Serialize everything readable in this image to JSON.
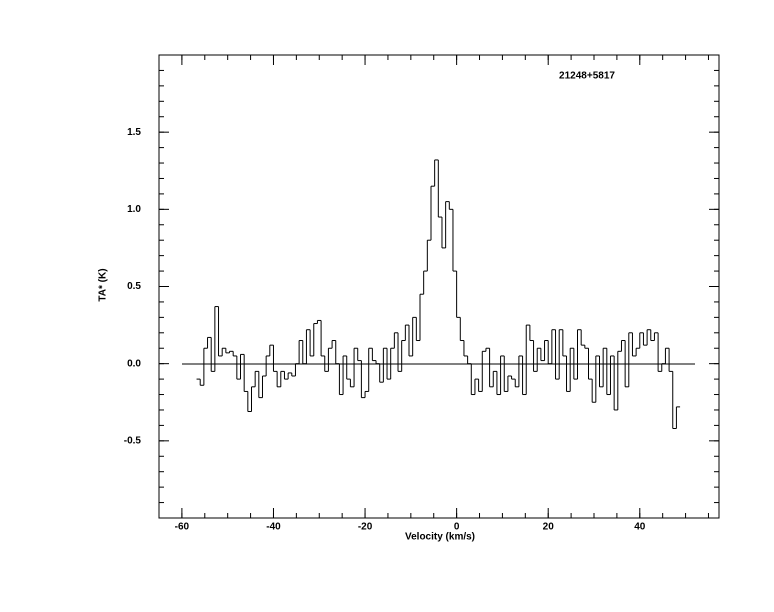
{
  "chart_data": {
    "type": "step",
    "title": "21248+5817",
    "x_label": "Velocity (km/s)",
    "y_label": "TA* (K)",
    "color": "#000000",
    "xlim": [
      -65,
      57.3
    ],
    "ylim": [
      -1,
      2
    ],
    "xticks": [
      -60,
      -40,
      -20,
      0,
      20,
      40
    ],
    "yticks": [
      {
        "value": -0.5,
        "label": "-0.5"
      },
      {
        "value": 0,
        "label": "0.0"
      },
      {
        "value": 0.5,
        "label": "0.5"
      },
      {
        "value": 1,
        "label": "1.0"
      },
      {
        "value": 1.5,
        "label": "1.5"
      }
    ],
    "x": [
      -56.4,
      -55.6,
      -54.8,
      -54,
      -53.2,
      -52.4,
      -51.6,
      -50.8,
      -50,
      -49.2,
      -48.4,
      -47.6,
      -46.8,
      -46,
      -45.2,
      -44.4,
      -43.6,
      -42.8,
      -42,
      -41.2,
      -40.4,
      -39.6,
      -38.8,
      -38,
      -37.2,
      -36.4,
      -35.6,
      -34.8,
      -34,
      -33.2,
      -32.4,
      -31.6,
      -30.8,
      -30,
      -29.2,
      -28.4,
      -27.6,
      -26.8,
      -26,
      -25.2,
      -24.4,
      -23.6,
      -22.8,
      -22,
      -21.2,
      -20.4,
      -19.6,
      -18.8,
      -18,
      -17.2,
      -16.4,
      -15.6,
      -14.8,
      -14,
      -13.2,
      -12.4,
      -11.6,
      -10.8,
      -10,
      -9.2,
      -8.4,
      -7.6,
      -6.8,
      -6,
      -5.2,
      -4.4,
      -3.6,
      -2.8,
      -2,
      -1.2,
      -0.4,
      0.4,
      1.2,
      2,
      2.8,
      3.6,
      4.4,
      5.2,
      6,
      6.8,
      7.6,
      8.4,
      9.2,
      10,
      10.8,
      11.6,
      12.4,
      13.2,
      14,
      14.8,
      15.6,
      16.4,
      17.2,
      18,
      18.8,
      19.6,
      20.4,
      21.2,
      22,
      22.8,
      23.6,
      24.4,
      25.2,
      26,
      26.8,
      27.6,
      28.4,
      29.2,
      30,
      30.8,
      31.6,
      32.4,
      33.2,
      34,
      34.8,
      35.6,
      36.4,
      37.2,
      38,
      38.8,
      39.6,
      40.4,
      41.2,
      42,
      42.8,
      43.6,
      44.4,
      45.2,
      46,
      46.8,
      47.6,
      48.4
    ],
    "values": [
      -0.1,
      -0.14,
      0.1,
      0.17,
      -0.05,
      0.37,
      0.05,
      0.1,
      0.07,
      0.08,
      0.05,
      -0.1,
      0.06,
      -0.18,
      -0.31,
      -0.15,
      -0.05,
      -0.22,
      -0.08,
      0.05,
      0.12,
      -0.05,
      -0.15,
      -0.05,
      -0.1,
      -0.06,
      -0.08,
      0.0,
      0.15,
      0.0,
      0.22,
      0.05,
      0.26,
      0.28,
      0.05,
      -0.05,
      0.1,
      0.15,
      0.0,
      -0.2,
      0.05,
      -0.1,
      -0.15,
      0.1,
      0.02,
      -0.22,
      -0.18,
      0.1,
      0.02,
      0.0,
      -0.12,
      0.1,
      -0.1,
      0.1,
      0.2,
      -0.05,
      0.15,
      0.25,
      0.05,
      0.3,
      0.15,
      0.45,
      0.6,
      0.8,
      1.15,
      1.32,
      0.95,
      0.75,
      1.05,
      1.0,
      0.6,
      0.3,
      0.15,
      0.05,
      0.0,
      -0.2,
      -0.1,
      -0.18,
      0.08,
      0.1,
      -0.15,
      -0.05,
      -0.2,
      0.05,
      -0.18,
      -0.08,
      -0.1,
      -0.15,
      0.05,
      -0.2,
      0.25,
      0.15,
      -0.05,
      0.1,
      0.02,
      0.15,
      0.0,
      0.22,
      -0.1,
      0.22,
      0.05,
      -0.18,
      0.1,
      -0.1,
      0.22,
      0.12,
      0.1,
      -0.1,
      -0.25,
      0.05,
      -0.15,
      0.1,
      -0.2,
      0.05,
      -0.3,
      0.08,
      0.15,
      -0.15,
      0.2,
      0.05,
      0.1,
      0.2,
      0.12,
      0.22,
      0.15,
      0.2,
      -0.05,
      0.0,
      0.1,
      -0.05,
      -0.42,
      -0.28
    ]
  }
}
